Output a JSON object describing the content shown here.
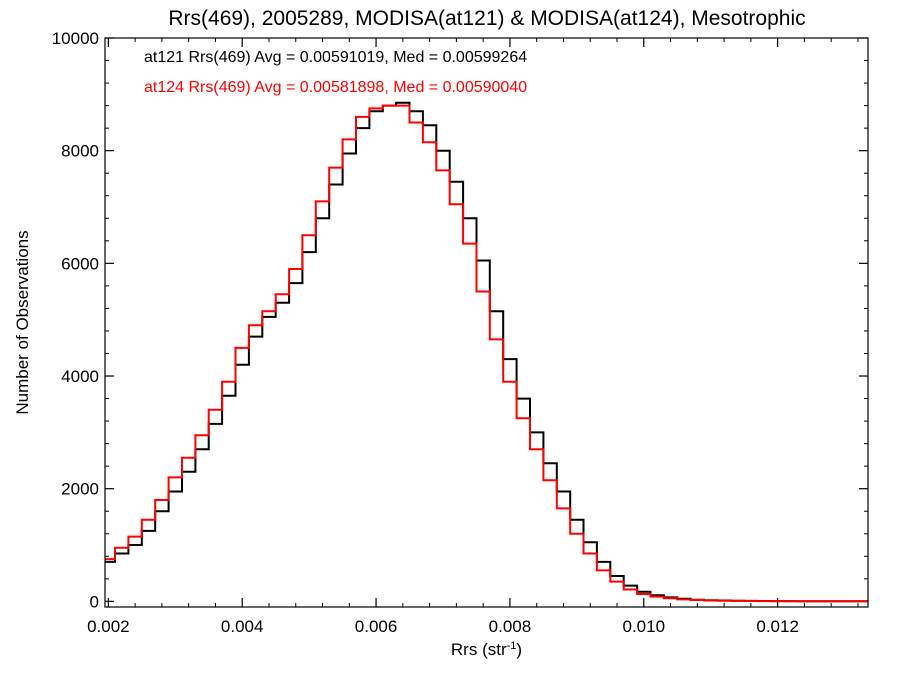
{
  "chart_data": {
    "type": "line",
    "step": true,
    "title": "Rrs(469), 2005289, MODISA(at121) & MODISA(at124), Mesotrophic",
    "xlabel": {
      "main": "Rrs (str",
      "sup": "-1",
      "close": ")"
    },
    "ylabel": "Number of Observations",
    "xlim": [
      0.00195,
      0.01335
    ],
    "ylim": [
      -100,
      10000
    ],
    "xticks": [
      0.002,
      0.004,
      0.006,
      0.008,
      0.01,
      0.012
    ],
    "xtick_labels": [
      "0.002",
      "0.004",
      "0.006",
      "0.008",
      "0.010",
      "0.012"
    ],
    "yticks": [
      0,
      2000,
      4000,
      6000,
      8000,
      10000
    ],
    "ytick_labels": [
      "0",
      "2000",
      "4000",
      "6000",
      "8000",
      "10000"
    ],
    "annotations": [
      {
        "text": "at121 Rrs(469) Avg = 0.00591019, Med = 0.00599264",
        "color": "#000000"
      },
      {
        "text": "at124 Rrs(469) Avg = 0.00581898, Med = 0.00590040",
        "color": "#ff0000"
      }
    ],
    "series": [
      {
        "color": "#000000",
        "x": [
          0.00195,
          0.0021,
          0.0023,
          0.0025,
          0.0027,
          0.0029,
          0.0031,
          0.0033,
          0.0035,
          0.0037,
          0.0039,
          0.0041,
          0.0043,
          0.0045,
          0.0047,
          0.0049,
          0.0051,
          0.0053,
          0.0055,
          0.0057,
          0.0059,
          0.0061,
          0.0063,
          0.0065,
          0.0067,
          0.0069,
          0.0071,
          0.0073,
          0.0075,
          0.0077,
          0.0079,
          0.0081,
          0.0083,
          0.0085,
          0.0087,
          0.0089,
          0.0091,
          0.0093,
          0.0095,
          0.0097,
          0.0099,
          0.0101,
          0.0103,
          0.0105,
          0.0107,
          0.0109,
          0.0111,
          0.0113,
          0.0115,
          0.0117,
          0.0119,
          0.0121,
          0.0123,
          0.0125,
          0.0127,
          0.0129,
          0.0131,
          0.01335
        ],
        "y": [
          700,
          850,
          1000,
          1250,
          1600,
          1950,
          2300,
          2700,
          3150,
          3650,
          4200,
          4700,
          5050,
          5300,
          5650,
          6200,
          6800,
          7400,
          7950,
          8400,
          8700,
          8800,
          8850,
          8700,
          8450,
          8000,
          7450,
          6800,
          6050,
          5150,
          4300,
          3600,
          3000,
          2450,
          1950,
          1450,
          1050,
          700,
          450,
          280,
          170,
          110,
          70,
          45,
          30,
          20,
          15,
          10,
          8,
          6,
          5,
          4,
          3,
          3,
          2,
          2,
          2,
          1
        ]
      },
      {
        "color": "#ff0000",
        "x": [
          0.00195,
          0.0021,
          0.0023,
          0.0025,
          0.0027,
          0.0029,
          0.0031,
          0.0033,
          0.0035,
          0.0037,
          0.0039,
          0.0041,
          0.0043,
          0.0045,
          0.0047,
          0.0049,
          0.0051,
          0.0053,
          0.0055,
          0.0057,
          0.0059,
          0.0061,
          0.0063,
          0.0065,
          0.0067,
          0.0069,
          0.0071,
          0.0073,
          0.0075,
          0.0077,
          0.0079,
          0.0081,
          0.0083,
          0.0085,
          0.0087,
          0.0089,
          0.0091,
          0.0093,
          0.0095,
          0.0097,
          0.0099,
          0.0101,
          0.0103,
          0.0105,
          0.0107,
          0.0109,
          0.0111,
          0.0113,
          0.0115,
          0.0117,
          0.0119,
          0.0121,
          0.0123,
          0.0125,
          0.0127,
          0.0129,
          0.0131,
          0.01335
        ],
        "y": [
          750,
          950,
          1150,
          1450,
          1800,
          2200,
          2550,
          2950,
          3400,
          3900,
          4500,
          4900,
          5150,
          5450,
          5900,
          6500,
          7100,
          7700,
          8200,
          8600,
          8750,
          8800,
          8800,
          8500,
          8150,
          7650,
          7050,
          6350,
          5500,
          4650,
          3900,
          3250,
          2700,
          2150,
          1650,
          1200,
          850,
          550,
          350,
          210,
          130,
          85,
          55,
          35,
          25,
          15,
          10,
          8,
          6,
          5,
          4,
          3,
          3,
          2,
          2,
          2,
          1,
          1
        ]
      }
    ]
  }
}
